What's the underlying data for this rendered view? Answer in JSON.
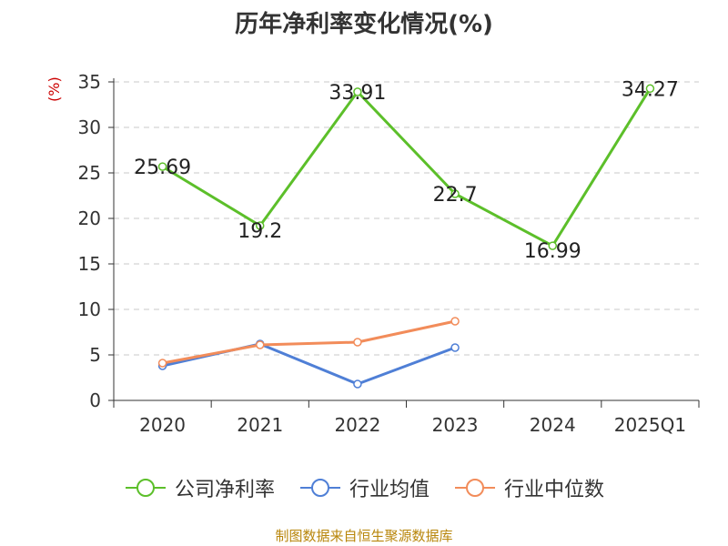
{
  "chart_data": {
    "type": "line",
    "title": "历年净利率变化情况(%)",
    "ylabel": "(%)",
    "categories": [
      "2020",
      "2021",
      "2022",
      "2023",
      "2024",
      "2025Q1"
    ],
    "ylim": [
      0,
      35
    ],
    "yticks": [
      "0",
      "5",
      "10",
      "15",
      "20",
      "25",
      "30",
      "35"
    ],
    "grid": true,
    "legend_position": "bottom",
    "series": [
      {
        "name": "公司净利率",
        "values": [
          25.69,
          19.2,
          33.91,
          22.7,
          16.99,
          34.27
        ],
        "labels": [
          "25.69",
          "19.2",
          "33.91",
          "22.7",
          "16.99",
          "34.27"
        ],
        "color": "#5cbf2a"
      },
      {
        "name": "行业均值",
        "values": [
          3.8,
          6.2,
          1.8,
          5.8,
          null,
          null
        ],
        "color": "#4f7fd6"
      },
      {
        "name": "行业中位数",
        "values": [
          4.1,
          6.1,
          6.4,
          8.7,
          null,
          null
        ],
        "color": "#f28c5a"
      }
    ]
  },
  "source": "制图数据来自恒生聚源数据库"
}
